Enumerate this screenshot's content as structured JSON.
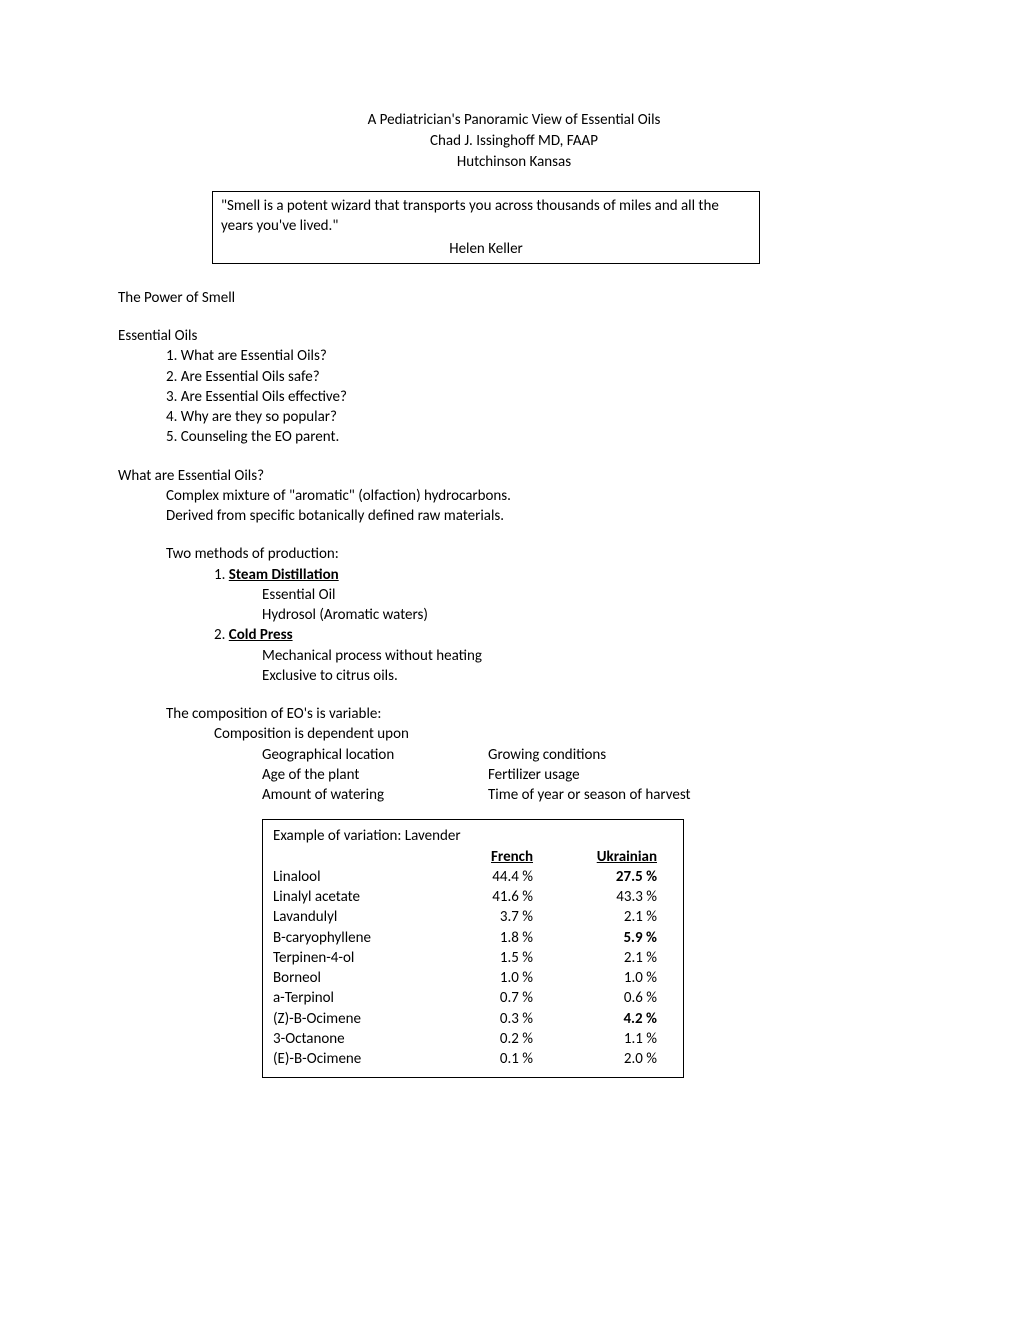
{
  "title": {
    "line1": "A Pediatrician's Panoramic View of Essential Oils",
    "line2": "Chad J. Issinghoff  MD, FAAP",
    "line3": "Hutchinson Kansas"
  },
  "quote": {
    "text": "\"Smell is a potent wizard that transports you across thousands of miles and all the years you've lived.\"",
    "attribution": "Helen Keller"
  },
  "sectionPower": "The Power of Smell",
  "sectionEO": {
    "heading": "Essential Oils",
    "items": [
      "1. What are Essential Oils?",
      "2. Are Essential Oils safe?",
      "3. Are Essential Oils effective?",
      "4. Why are they so popular?",
      "5. Counseling the EO parent."
    ]
  },
  "sectionWhat": {
    "heading": "What are Essential Oils?",
    "line1": "Complex mixture of \"aromatic\" (olfaction) hydrocarbons.",
    "line2": "Derived from specific botanically defined raw materials."
  },
  "methods": {
    "intro": "Two methods of production:",
    "m1_prefix": "1. ",
    "m1_label": "Steam Distillation",
    "m1_sub1": "Essential Oil",
    "m1_sub2": "Hydrosol (Aromatic waters)",
    "m2_prefix": "2.  ",
    "m2_label": "Cold Press",
    "m2_sub1": "Mechanical process without heating",
    "m2_sub2": "Exclusive to citrus oils."
  },
  "composition": {
    "intro": "The composition of EO's is variable:",
    "depend": "Composition is dependent upon",
    "factors": [
      {
        "a": "Geographical location",
        "b": "Growing conditions"
      },
      {
        "a": "Age of the plant",
        "b": "Fertilizer usage"
      },
      {
        "a": "Amount of watering",
        "b": "Time of year or season of harvest"
      }
    ]
  },
  "table": {
    "title": "Example of variation: Lavender",
    "col_fr": "French",
    "col_uk": "Ukrainian",
    "rows": [
      {
        "name": "Linalool",
        "fr": "44.4 %",
        "uk": "27.5 %",
        "uk_bold": true
      },
      {
        "name": "Linalyl acetate",
        "fr": "41.6 %",
        "uk": "43.3 %",
        "uk_bold": false
      },
      {
        "name": "Lavandulyl",
        "fr": "3.7 %",
        "uk": "2.1 %",
        "uk_bold": false
      },
      {
        "name": "B-caryophyllene",
        "fr": "1.8 %",
        "uk": "5.9 %",
        "uk_bold": true
      },
      {
        "name": "Terpinen-4-ol",
        "fr": "1.5 %",
        "uk": "2.1 %",
        "uk_bold": false
      },
      {
        "name": "Borneol",
        "fr": "1.0 %",
        "uk": "1.0 %",
        "uk_bold": false
      },
      {
        "name": "a-Terpinol",
        "fr": "0.7 %",
        "uk": "0.6 %",
        "uk_bold": false
      },
      {
        "name": "(Z)-B-Ocimene",
        "fr": "0.3 %",
        "uk": "4.2 %",
        "uk_bold": true
      },
      {
        "name": "3-Octanone",
        "fr": "0.2 %",
        "uk": "1.1 %",
        "uk_bold": false
      },
      {
        "name": "(E)-B-Ocimene",
        "fr": "0.1 %",
        "uk": "2.0 %",
        "uk_bold": false
      }
    ]
  }
}
